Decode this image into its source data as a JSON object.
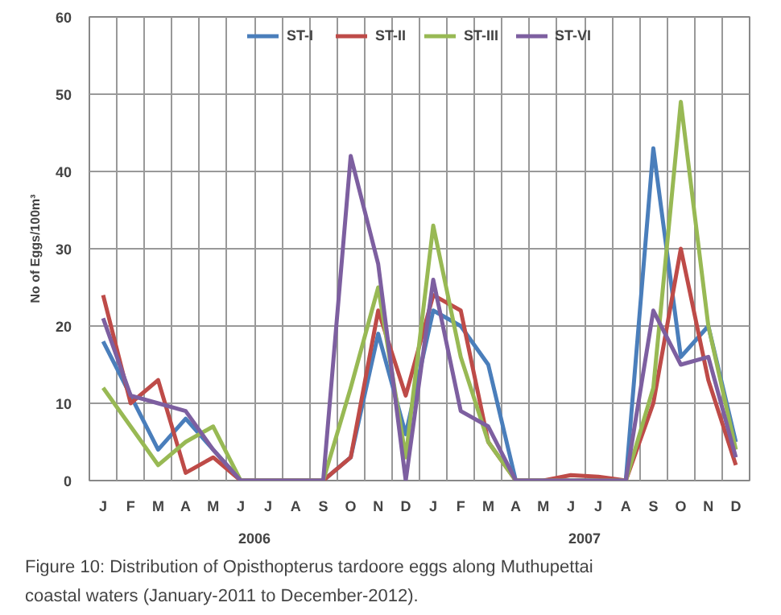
{
  "chart_data": {
    "type": "line",
    "ylabel": "No of Eggs/100m³",
    "categories": [
      "J",
      "F",
      "M",
      "A",
      "M",
      "J",
      "J",
      "A",
      "S",
      "O",
      "N",
      "D",
      "J",
      "F",
      "M",
      "A",
      "M",
      "J",
      "J",
      "A",
      "S",
      "O",
      "N",
      "D"
    ],
    "series": [
      {
        "name": "ST-I",
        "color": "#4a7ebb",
        "values": [
          18,
          11,
          4,
          8,
          4,
          0,
          0,
          0,
          0,
          3,
          19,
          6,
          22,
          20,
          15,
          0,
          0,
          0,
          0,
          0,
          43,
          16,
          20,
          5
        ]
      },
      {
        "name": "ST-II",
        "color": "#be4b48",
        "values": [
          24,
          10,
          13,
          1,
          3,
          0,
          0,
          0,
          0,
          3,
          22,
          11,
          24,
          22,
          5,
          0,
          0,
          0.7,
          0.5,
          0,
          10,
          30,
          13,
          2
        ]
      },
      {
        "name": "ST-III",
        "color": "#98b954",
        "values": [
          12,
          7,
          2,
          5,
          7,
          0,
          0,
          0,
          0,
          12,
          25,
          3,
          33,
          16,
          5,
          0,
          0,
          0,
          0,
          0,
          12,
          49,
          20,
          4
        ]
      },
      {
        "name": "ST-VI",
        "color": "#7d5fa0",
        "values": [
          21,
          11,
          10,
          9,
          4,
          0,
          0,
          0,
          0,
          42,
          28,
          0,
          26,
          9,
          7,
          0,
          0,
          0,
          0,
          0,
          22,
          15,
          16,
          3
        ]
      }
    ],
    "ylim": [
      0,
      60
    ],
    "yticks": [
      0,
      10,
      20,
      30,
      40,
      50,
      60
    ],
    "grid": true,
    "legend": "top",
    "marker": "none",
    "annotations": [
      "2006",
      "2007",
      "Figure 10: Distribution of Opisthopterus tardoore eggs along Muthupettai coastal waters (January-2011 to December-2012)."
    ]
  }
}
